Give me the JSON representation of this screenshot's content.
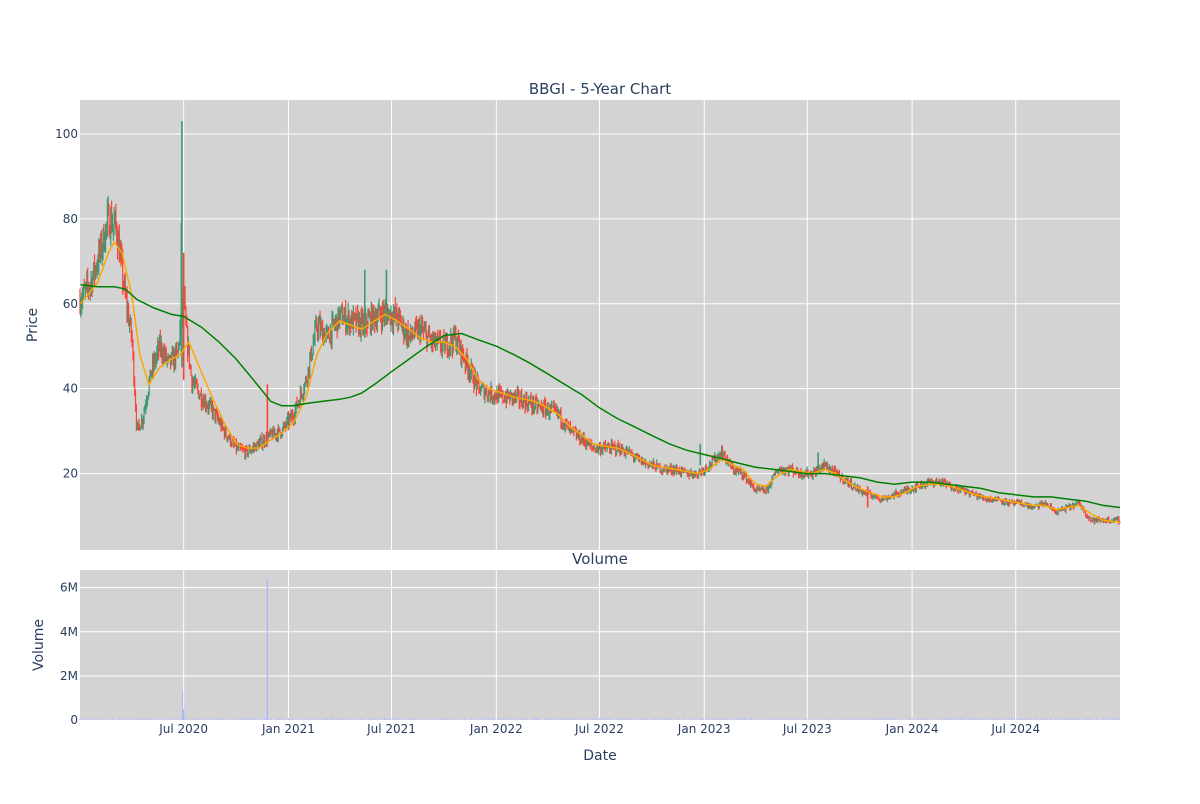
{
  "chart_data": [
    {
      "type": "candlestick",
      "title": "BBGI - 5-Year Chart",
      "ylabel": "Price",
      "ylim": [
        2,
        108
      ],
      "yticks": [
        20,
        40,
        60,
        80,
        100
      ],
      "grid": true,
      "x_range": [
        "2020-01-01",
        "2024-12-31"
      ],
      "colors": {
        "up": "#3d9970",
        "down": "#ff4136",
        "ma_short": "#ffa500",
        "ma_long": "#008000",
        "plot_bg": "#d3d3d3"
      },
      "close_series": [
        [
          "2020-01-02",
          61
        ],
        [
          "2020-01-20",
          65
        ],
        [
          "2020-02-05",
          72
        ],
        [
          "2020-02-20",
          80
        ],
        [
          "2020-03-05",
          78
        ],
        [
          "2020-03-20",
          62
        ],
        [
          "2020-04-01",
          52
        ],
        [
          "2020-04-10",
          30
        ],
        [
          "2020-04-20",
          33
        ],
        [
          "2020-05-05",
          44
        ],
        [
          "2020-05-20",
          50
        ],
        [
          "2020-06-05",
          46
        ],
        [
          "2020-06-20",
          48
        ],
        [
          "2020-07-01",
          62
        ],
        [
          "2020-07-05",
          54
        ],
        [
          "2020-07-15",
          42
        ],
        [
          "2020-08-01",
          38
        ],
        [
          "2020-08-20",
          35
        ],
        [
          "2020-09-10",
          30
        ],
        [
          "2020-10-01",
          26
        ],
        [
          "2020-10-20",
          25
        ],
        [
          "2020-11-10",
          27
        ],
        [
          "2020-12-01",
          29
        ],
        [
          "2020-12-20",
          30
        ],
        [
          "2021-01-10",
          34
        ],
        [
          "2021-02-01",
          42
        ],
        [
          "2021-02-20",
          55
        ],
        [
          "2021-03-10",
          52
        ],
        [
          "2021-04-01",
          57
        ],
        [
          "2021-04-20",
          56
        ],
        [
          "2021-05-10",
          55
        ],
        [
          "2021-06-01",
          57
        ],
        [
          "2021-06-20",
          58
        ],
        [
          "2021-07-10",
          57
        ],
        [
          "2021-08-01",
          52
        ],
        [
          "2021-08-20",
          54
        ],
        [
          "2021-09-10",
          51
        ],
        [
          "2021-10-01",
          50
        ],
        [
          "2021-10-20",
          52
        ],
        [
          "2021-11-10",
          46
        ],
        [
          "2021-12-01",
          40
        ],
        [
          "2021-12-20",
          39
        ],
        [
          "2022-01-10",
          38
        ],
        [
          "2022-02-01",
          38
        ],
        [
          "2022-02-20",
          37
        ],
        [
          "2022-03-10",
          36
        ],
        [
          "2022-04-01",
          35
        ],
        [
          "2022-04-20",
          34
        ],
        [
          "2022-05-10",
          30
        ],
        [
          "2022-06-01",
          28
        ],
        [
          "2022-06-20",
          26
        ],
        [
          "2022-07-10",
          26
        ],
        [
          "2022-08-01",
          26
        ],
        [
          "2022-08-20",
          25
        ],
        [
          "2022-09-10",
          23
        ],
        [
          "2022-10-01",
          22
        ],
        [
          "2022-10-20",
          21
        ],
        [
          "2022-11-10",
          21
        ],
        [
          "2022-12-01",
          20
        ],
        [
          "2022-12-20",
          20
        ],
        [
          "2023-01-10",
          22
        ],
        [
          "2023-02-01",
          25
        ],
        [
          "2023-02-20",
          21
        ],
        [
          "2023-03-10",
          20
        ],
        [
          "2023-04-01",
          16
        ],
        [
          "2023-04-20",
          16
        ],
        [
          "2023-05-10",
          21
        ],
        [
          "2023-06-01",
          21
        ],
        [
          "2023-06-20",
          20
        ],
        [
          "2023-07-10",
          20
        ],
        [
          "2023-08-01",
          22
        ],
        [
          "2023-08-20",
          20
        ],
        [
          "2023-09-10",
          18
        ],
        [
          "2023-10-01",
          16
        ],
        [
          "2023-10-20",
          15
        ],
        [
          "2023-11-10",
          14
        ],
        [
          "2023-12-01",
          15
        ],
        [
          "2023-12-20",
          16
        ],
        [
          "2024-01-10",
          17
        ],
        [
          "2024-02-01",
          18
        ],
        [
          "2024-02-20",
          18
        ],
        [
          "2024-03-10",
          17
        ],
        [
          "2024-04-01",
          16
        ],
        [
          "2024-04-20",
          15
        ],
        [
          "2024-05-10",
          14
        ],
        [
          "2024-06-01",
          14
        ],
        [
          "2024-06-20",
          13
        ],
        [
          "2024-07-10",
          13
        ],
        [
          "2024-08-01",
          12
        ],
        [
          "2024-08-20",
          13
        ],
        [
          "2024-09-10",
          11
        ],
        [
          "2024-10-01",
          12
        ],
        [
          "2024-10-20",
          13
        ],
        [
          "2024-11-10",
          9
        ],
        [
          "2024-12-01",
          9
        ],
        [
          "2024-12-31",
          9
        ]
      ],
      "spikes": [
        {
          "date": "2020-06-28",
          "low": 45,
          "high": 103,
          "up": true
        },
        {
          "date": "2020-06-27",
          "low": 48,
          "high": 79,
          "up": true
        },
        {
          "date": "2020-07-01",
          "low": 42,
          "high": 72,
          "up": false
        },
        {
          "date": "2021-05-15",
          "low": 52,
          "high": 68,
          "up": true
        },
        {
          "date": "2021-06-22",
          "low": 55,
          "high": 68,
          "up": true
        },
        {
          "date": "2020-11-25",
          "low": 27,
          "high": 41,
          "up": false
        },
        {
          "date": "2022-12-25",
          "low": 22,
          "high": 27,
          "up": true
        },
        {
          "date": "2023-07-20",
          "low": 21,
          "high": 25,
          "up": true
        },
        {
          "date": "2023-10-15",
          "low": 12,
          "high": 17,
          "up": false
        }
      ],
      "ma_short": [
        [
          "2020-01-02",
          60
        ],
        [
          "2020-02-01",
          65
        ],
        [
          "2020-02-20",
          72
        ],
        [
          "2020-03-01",
          74.5
        ],
        [
          "2020-03-15",
          72
        ],
        [
          "2020-04-01",
          62
        ],
        [
          "2020-04-15",
          48
        ],
        [
          "2020-05-01",
          41
        ],
        [
          "2020-05-20",
          45
        ],
        [
          "2020-06-10",
          47
        ],
        [
          "2020-06-25",
          48
        ],
        [
          "2020-07-10",
          51
        ],
        [
          "2020-08-01",
          44
        ],
        [
          "2020-08-20",
          38
        ],
        [
          "2020-09-10",
          32
        ],
        [
          "2020-10-01",
          27
        ],
        [
          "2020-10-20",
          26
        ],
        [
          "2020-11-10",
          26
        ],
        [
          "2020-12-01",
          28
        ],
        [
          "2020-12-20",
          29.5
        ],
        [
          "2021-01-10",
          32
        ],
        [
          "2021-02-01",
          38
        ],
        [
          "2021-02-20",
          48
        ],
        [
          "2021-03-10",
          53
        ],
        [
          "2021-04-01",
          56
        ],
        [
          "2021-04-20",
          55
        ],
        [
          "2021-05-10",
          54
        ],
        [
          "2021-06-01",
          56
        ],
        [
          "2021-06-20",
          57.5
        ],
        [
          "2021-07-10",
          56
        ],
        [
          "2021-08-01",
          54
        ],
        [
          "2021-08-20",
          52
        ],
        [
          "2021-09-10",
          51
        ],
        [
          "2021-10-01",
          51
        ],
        [
          "2021-10-20",
          50
        ],
        [
          "2021-11-10",
          47
        ],
        [
          "2021-12-01",
          42
        ],
        [
          "2021-12-20",
          40
        ],
        [
          "2022-01-10",
          39
        ],
        [
          "2022-02-01",
          38
        ],
        [
          "2022-02-20",
          37.5
        ],
        [
          "2022-03-10",
          37
        ],
        [
          "2022-04-01",
          35.5
        ],
        [
          "2022-04-20",
          34
        ],
        [
          "2022-05-10",
          31
        ],
        [
          "2022-06-01",
          29
        ],
        [
          "2022-06-20",
          27
        ],
        [
          "2022-07-10",
          26.5
        ],
        [
          "2022-08-01",
          26
        ],
        [
          "2022-08-20",
          25
        ],
        [
          "2022-09-10",
          23.5
        ],
        [
          "2022-10-01",
          22
        ],
        [
          "2022-10-20",
          21.5
        ],
        [
          "2022-11-10",
          21
        ],
        [
          "2022-12-01",
          20.5
        ],
        [
          "2022-12-20",
          20
        ],
        [
          "2023-01-10",
          21
        ],
        [
          "2023-02-01",
          23.5
        ],
        [
          "2023-02-20",
          22
        ],
        [
          "2023-03-10",
          21
        ],
        [
          "2023-04-01",
          17.5
        ],
        [
          "2023-04-20",
          17
        ],
        [
          "2023-05-10",
          19.5
        ],
        [
          "2023-06-01",
          21
        ],
        [
          "2023-06-20",
          20.5
        ],
        [
          "2023-07-10",
          20
        ],
        [
          "2023-08-01",
          21
        ],
        [
          "2023-08-20",
          20
        ],
        [
          "2023-09-10",
          18
        ],
        [
          "2023-10-01",
          16.5
        ],
        [
          "2023-10-20",
          15.5
        ],
        [
          "2023-11-10",
          14.5
        ],
        [
          "2023-12-01",
          14.5
        ],
        [
          "2023-12-20",
          15.5
        ],
        [
          "2024-01-10",
          17
        ],
        [
          "2024-02-01",
          17.5
        ],
        [
          "2024-02-20",
          17.5
        ],
        [
          "2024-03-10",
          17
        ],
        [
          "2024-04-01",
          16
        ],
        [
          "2024-04-20",
          15
        ],
        [
          "2024-05-10",
          14.5
        ],
        [
          "2024-06-01",
          14
        ],
        [
          "2024-06-20",
          13.5
        ],
        [
          "2024-07-10",
          13
        ],
        [
          "2024-08-01",
          12.5
        ],
        [
          "2024-08-20",
          12.5
        ],
        [
          "2024-09-10",
          11.5
        ],
        [
          "2024-10-01",
          12
        ],
        [
          "2024-10-20",
          12.5
        ],
        [
          "2024-11-10",
          10.5
        ],
        [
          "2024-12-01",
          9
        ],
        [
          "2024-12-31",
          8.5
        ]
      ],
      "ma_long": [
        [
          "2020-01-02",
          64.5
        ],
        [
          "2020-02-01",
          64
        ],
        [
          "2020-03-01",
          64
        ],
        [
          "2020-03-20",
          63.5
        ],
        [
          "2020-04-10",
          61
        ],
        [
          "2020-05-10",
          59
        ],
        [
          "2020-06-10",
          57.5
        ],
        [
          "2020-07-01",
          57
        ],
        [
          "2020-08-01",
          54.5
        ],
        [
          "2020-09-01",
          51
        ],
        [
          "2020-10-01",
          47
        ],
        [
          "2020-11-01",
          42
        ],
        [
          "2020-12-01",
          37
        ],
        [
          "2020-12-20",
          36
        ],
        [
          "2021-01-10",
          36
        ],
        [
          "2021-02-01",
          36.5
        ],
        [
          "2021-03-01",
          37
        ],
        [
          "2021-04-01",
          37.5
        ],
        [
          "2021-04-20",
          38
        ],
        [
          "2021-05-10",
          39
        ],
        [
          "2021-06-01",
          41
        ],
        [
          "2021-07-01",
          44
        ],
        [
          "2021-08-01",
          47
        ],
        [
          "2021-09-01",
          50
        ],
        [
          "2021-10-01",
          52.5
        ],
        [
          "2021-11-01",
          53
        ],
        [
          "2021-12-01",
          51.5
        ],
        [
          "2022-01-01",
          50
        ],
        [
          "2022-02-01",
          48
        ],
        [
          "2022-03-01",
          46
        ],
        [
          "2022-04-01",
          43.5
        ],
        [
          "2022-05-01",
          41
        ],
        [
          "2022-06-01",
          38.5
        ],
        [
          "2022-07-01",
          35.5
        ],
        [
          "2022-08-01",
          33
        ],
        [
          "2022-09-01",
          31
        ],
        [
          "2022-10-01",
          29
        ],
        [
          "2022-11-01",
          27
        ],
        [
          "2022-12-01",
          25.5
        ],
        [
          "2023-01-01",
          24.5
        ],
        [
          "2023-02-01",
          23.5
        ],
        [
          "2023-03-01",
          22.5
        ],
        [
          "2023-04-01",
          21.5
        ],
        [
          "2023-05-01",
          21
        ],
        [
          "2023-06-01",
          20.5
        ],
        [
          "2023-07-01",
          20
        ],
        [
          "2023-08-01",
          20
        ],
        [
          "2023-09-01",
          19.5
        ],
        [
          "2023-10-01",
          19
        ],
        [
          "2023-11-01",
          18
        ],
        [
          "2023-12-01",
          17.5
        ],
        [
          "2024-01-01",
          18
        ],
        [
          "2024-02-01",
          18
        ],
        [
          "2024-03-01",
          17.5
        ],
        [
          "2024-04-01",
          17
        ],
        [
          "2024-05-01",
          16.5
        ],
        [
          "2024-06-01",
          15.5
        ],
        [
          "2024-07-01",
          15
        ],
        [
          "2024-08-01",
          14.5
        ],
        [
          "2024-09-01",
          14.5
        ],
        [
          "2024-10-01",
          14
        ],
        [
          "2024-11-01",
          13.5
        ],
        [
          "2024-12-01",
          12.5
        ],
        [
          "2024-12-31",
          12
        ]
      ]
    },
    {
      "type": "bar",
      "title": "Volume",
      "ylabel": "Volume",
      "xlabel": "Date",
      "ylim": [
        0,
        6800000
      ],
      "yticks": [
        0,
        2000000,
        4000000,
        6000000
      ],
      "ytick_labels": [
        "0",
        "2M",
        "4M",
        "6M"
      ],
      "grid": true,
      "bar_color": "#aab4ff",
      "x_tick_labels": [
        "Jul 2020",
        "Jan 2021",
        "Jul 2021",
        "Jan 2022",
        "Jul 2022",
        "Jan 2023",
        "Jul 2023",
        "Jan 2024",
        "Jul 2024"
      ],
      "x_tick_dates": [
        "2020-07-01",
        "2021-01-01",
        "2021-07-01",
        "2022-01-01",
        "2022-07-01",
        "2023-01-01",
        "2023-07-01",
        "2024-01-01",
        "2024-07-01"
      ],
      "notable_bars": [
        [
          "2020-06-29",
          1300000
        ],
        [
          "2020-11-25",
          6400000
        ],
        [
          "2020-07-01",
          500000
        ]
      ]
    }
  ]
}
